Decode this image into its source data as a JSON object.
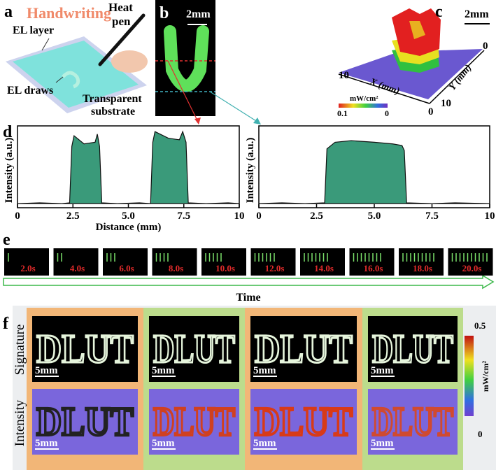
{
  "panels": {
    "a": {
      "label": "a",
      "title": "Handwriting",
      "heat_pen": [
        "Heat",
        "pen"
      ],
      "el_layer": "EL layer",
      "el_draws": "EL draws",
      "substrate": [
        "Transparent",
        "substrate"
      ]
    },
    "b": {
      "label": "b",
      "scale": "2mm"
    },
    "c": {
      "label": "c",
      "scale": "2mm",
      "x_axis": "X (mm)",
      "y_axis": "Y (mm)",
      "ticks": [
        "10",
        "0",
        "10",
        "0"
      ],
      "colorbar": {
        "unit": "mW/cm²",
        "max": "0.1",
        "min": "0"
      }
    },
    "d": {
      "label": "d",
      "charts": [
        {
          "type": "area",
          "color": "#3a9a7a",
          "y_label": "Intensity (a.u.)",
          "x_label": "Distance (mm)",
          "x": [
            0,
            1,
            2,
            2.35,
            2.45,
            2.55,
            3.0,
            3.5,
            3.6,
            3.7,
            3.8,
            4.5,
            5.5,
            6.0,
            6.1,
            6.2,
            6.8,
            7.3,
            7.45,
            7.6,
            7.7,
            8.5,
            9.5,
            10
          ],
          "values": [
            0.05,
            0.06,
            0.05,
            0.06,
            0.75,
            0.88,
            0.78,
            0.8,
            0.9,
            0.75,
            0.06,
            0.05,
            0.06,
            0.05,
            0.8,
            0.93,
            0.85,
            0.83,
            0.93,
            0.8,
            0.06,
            0.05,
            0.06,
            0.05
          ],
          "xlim": [
            0,
            10
          ],
          "ylim": [
            0,
            1
          ],
          "xticks": [
            0,
            2.5,
            {
              "value": 5,
              "label": "5.0"
            },
            7.5,
            10
          ]
        },
        {
          "type": "area",
          "color": "#3a9a7a",
          "y_label": "Intensity (a.u.)",
          "x": [
            0,
            1,
            2,
            2.85,
            2.95,
            3.3,
            4,
            5,
            5.8,
            6.2,
            6.3,
            6.4,
            7.5,
            8.5,
            10
          ],
          "values": [
            0.05,
            0.06,
            0.05,
            0.06,
            0.72,
            0.8,
            0.82,
            0.8,
            0.78,
            0.76,
            0.7,
            0.06,
            0.05,
            0.06,
            0.05
          ],
          "xlim": [
            0,
            10
          ],
          "ylim": [
            0,
            1
          ],
          "xticks": [
            0,
            2.5,
            {
              "value": 5,
              "label": "5.0"
            },
            7.5,
            10
          ]
        }
      ]
    },
    "e": {
      "label": "e",
      "frames": [
        "2.0s",
        "4.0s",
        "6.0s",
        "8.0s",
        "10.0s",
        "12.0s",
        "14.0s",
        "16.0s",
        "18.0s",
        "20.0s"
      ],
      "axis": "Time"
    },
    "f": {
      "label": "f",
      "rows": [
        "Signature",
        "Intensity"
      ],
      "handwriting": "DLUT",
      "scale": "5mm",
      "colorbar": {
        "max": "0.5",
        "unit": "mW/cm²",
        "min": "0"
      }
    }
  }
}
